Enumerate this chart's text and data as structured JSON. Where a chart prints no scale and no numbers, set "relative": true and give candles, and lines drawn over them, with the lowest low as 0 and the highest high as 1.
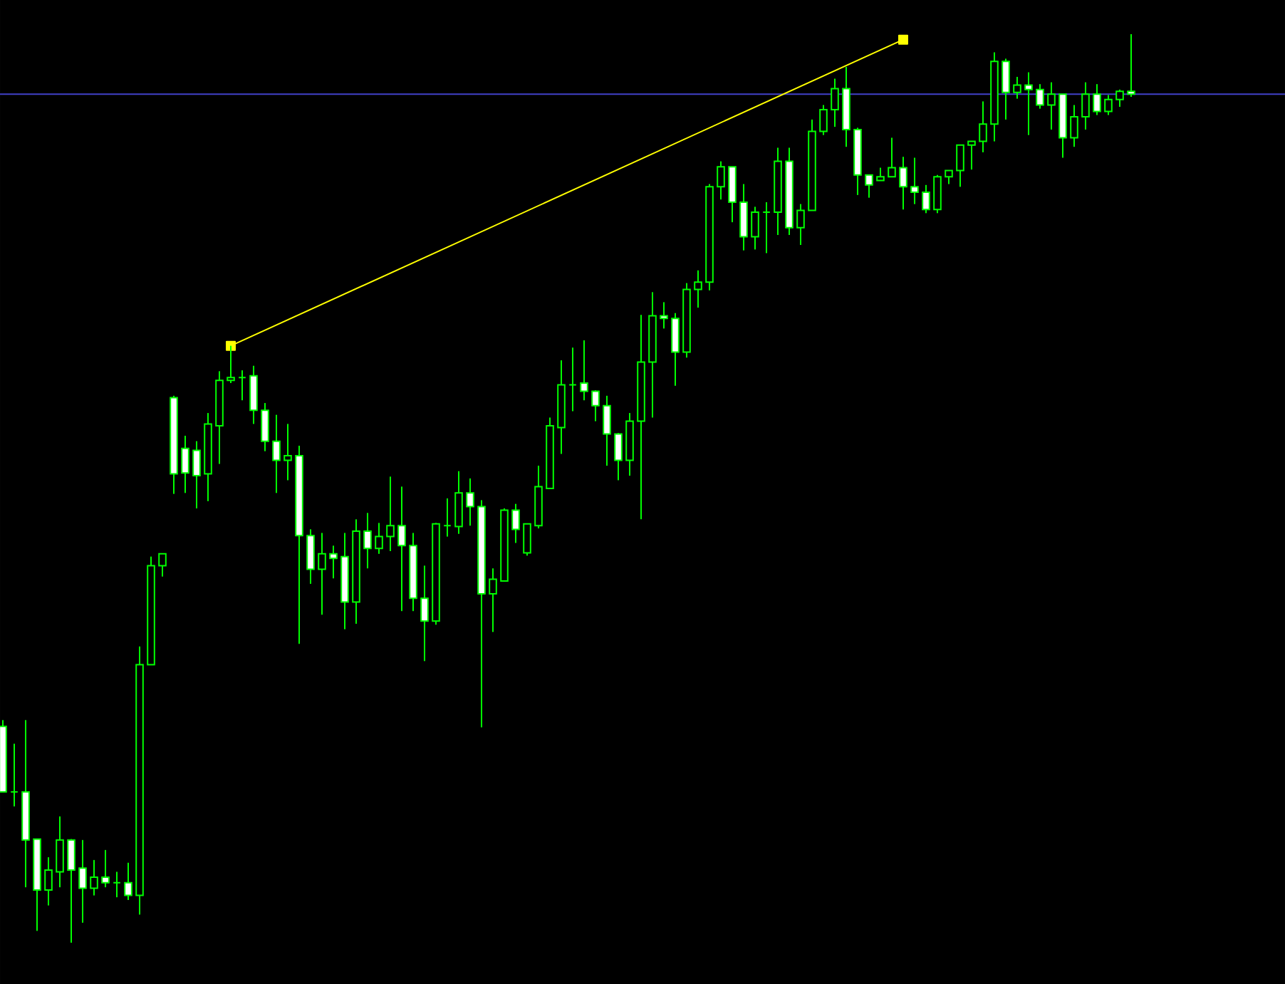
{
  "chart_data": {
    "type": "candlestick",
    "relative": true,
    "color": "#00ff00",
    "categories": [
      null,
      null,
      null,
      null,
      null,
      null,
      null,
      null,
      null,
      null,
      null,
      null,
      null,
      null,
      null,
      null,
      null,
      null,
      null,
      null,
      null,
      null,
      null,
      null,
      null,
      null,
      null,
      null,
      null,
      null,
      null,
      null,
      null,
      null,
      null,
      null,
      null,
      null,
      null,
      null,
      null,
      null,
      null,
      null,
      null,
      null,
      null,
      null,
      null,
      null,
      null,
      null,
      null,
      null,
      null,
      null,
      null,
      null,
      null,
      null,
      null,
      null,
      null,
      null,
      null,
      null,
      null,
      null,
      null,
      null,
      null,
      null,
      null,
      null,
      null,
      null,
      null,
      null,
      null,
      null,
      null,
      null,
      null,
      null,
      null,
      null,
      null,
      null,
      null,
      null,
      null,
      null,
      null,
      null,
      null,
      null,
      null,
      null,
      null,
      null
    ],
    "ohlc": [
      [
        0.238,
        0.245,
        0.166,
        0.166
      ],
      [
        0.166,
        0.219,
        0.15,
        0.166
      ],
      [
        0.166,
        0.245,
        0.061,
        0.113
      ],
      [
        0.114,
        0.114,
        0.013,
        0.058
      ],
      [
        0.058,
        0.094,
        0.041,
        0.08
      ],
      [
        0.078,
        0.139,
        0.061,
        0.113
      ],
      [
        0.113,
        0.114,
        0,
        0.08
      ],
      [
        0.082,
        0.113,
        0.022,
        0.06
      ],
      [
        0.06,
        0.091,
        0.052,
        0.072
      ],
      [
        0.072,
        0.102,
        0.061,
        0.066
      ],
      [
        0.066,
        0.078,
        0.05,
        0.066
      ],
      [
        0.066,
        0.088,
        0.047,
        0.052
      ],
      [
        0.052,
        0.326,
        0.031,
        0.306
      ],
      [
        0.306,
        0.425,
        0.306,
        0.415
      ],
      [
        0.415,
        0.428,
        0.403,
        0.428
      ],
      [
        0.6,
        0.602,
        0.494,
        0.516
      ],
      [
        0.544,
        0.558,
        0.495,
        0.517
      ],
      [
        0.542,
        0.552,
        0.478,
        0.514
      ],
      [
        0.516,
        0.583,
        0.486,
        0.571
      ],
      [
        0.569,
        0.629,
        0.527,
        0.619
      ],
      [
        0.619,
        0.657,
        0.616,
        0.622
      ],
      [
        0.622,
        0.63,
        0.597,
        0.622
      ],
      [
        0.624,
        0.635,
        0.571,
        0.586
      ],
      [
        0.586,
        0.594,
        0.541,
        0.552
      ],
      [
        0.552,
        0.581,
        0.495,
        0.531
      ],
      [
        0.531,
        0.571,
        0.509,
        0.536
      ],
      [
        0.536,
        0.547,
        0.329,
        0.448
      ],
      [
        0.448,
        0.455,
        0.395,
        0.411
      ],
      [
        0.411,
        0.451,
        0.361,
        0.428
      ],
      [
        0.428,
        0.437,
        0.401,
        0.423
      ],
      [
        0.425,
        0.451,
        0.345,
        0.375
      ],
      [
        0.375,
        0.466,
        0.351,
        0.453
      ],
      [
        0.453,
        0.473,
        0.412,
        0.434
      ],
      [
        0.434,
        0.462,
        0.428,
        0.447
      ],
      [
        0.447,
        0.513,
        0.431,
        0.459
      ],
      [
        0.459,
        0.502,
        0.365,
        0.437
      ],
      [
        0.437,
        0.451,
        0.365,
        0.379
      ],
      [
        0.379,
        0.415,
        0.31,
        0.354
      ],
      [
        0.354,
        0.462,
        0.35,
        0.461
      ],
      [
        0.459,
        0.489,
        0.447,
        0.459
      ],
      [
        0.458,
        0.519,
        0.45,
        0.495
      ],
      [
        0.495,
        0.511,
        0.459,
        0.48
      ],
      [
        0.48,
        0.487,
        0.237,
        0.384
      ],
      [
        0.384,
        0.412,
        0.342,
        0.4
      ],
      [
        0.398,
        0.478,
        0.398,
        0.476
      ],
      [
        0.476,
        0.483,
        0.44,
        0.455
      ],
      [
        0.429,
        0.461,
        0.426,
        0.461
      ],
      [
        0.459,
        0.525,
        0.456,
        0.502
      ],
      [
        0.5,
        0.578,
        0.5,
        0.569
      ],
      [
        0.567,
        0.641,
        0.538,
        0.614
      ],
      [
        0.614,
        0.655,
        0.585,
        0.614
      ],
      [
        0.616,
        0.663,
        0.597,
        0.607
      ],
      [
        0.607,
        0.608,
        0.574,
        0.591
      ],
      [
        0.591,
        0.602,
        0.525,
        0.56
      ],
      [
        0.56,
        0.561,
        0.509,
        0.531
      ],
      [
        0.531,
        0.583,
        0.514,
        0.574
      ],
      [
        0.574,
        0.691,
        0.466,
        0.639
      ],
      [
        0.639,
        0.716,
        0.578,
        0.69
      ],
      [
        0.69,
        0.705,
        0.676,
        0.687
      ],
      [
        0.687,
        0.693,
        0.613,
        0.65
      ],
      [
        0.65,
        0.726,
        0.644,
        0.719
      ],
      [
        0.719,
        0.74,
        0.699,
        0.727
      ],
      [
        0.727,
        0.835,
        0.718,
        0.832
      ],
      [
        0.832,
        0.86,
        0.818,
        0.854
      ],
      [
        0.854,
        0.854,
        0.793,
        0.815
      ],
      [
        0.815,
        0.835,
        0.762,
        0.777
      ],
      [
        0.777,
        0.81,
        0.763,
        0.804
      ],
      [
        0.804,
        0.815,
        0.759,
        0.804
      ],
      [
        0.804,
        0.875,
        0.779,
        0.86
      ],
      [
        0.86,
        0.875,
        0.779,
        0.787
      ],
      [
        0.787,
        0.813,
        0.768,
        0.806
      ],
      [
        0.806,
        0.906,
        0.806,
        0.893
      ],
      [
        0.893,
        0.922,
        0.889,
        0.917
      ],
      [
        0.917,
        0.951,
        0.898,
        0.94
      ],
      [
        0.94,
        0.964,
        0.876,
        0.895
      ],
      [
        0.895,
        0.897,
        0.823,
        0.845
      ],
      [
        0.845,
        0.845,
        0.82,
        0.834
      ],
      [
        0.839,
        0.853,
        0.839,
        0.843
      ],
      [
        0.843,
        0.886,
        0.843,
        0.853
      ],
      [
        0.853,
        0.865,
        0.807,
        0.832
      ],
      [
        0.832,
        0.864,
        0.813,
        0.826
      ],
      [
        0.826,
        0.834,
        0.803,
        0.807
      ],
      [
        0.807,
        0.845,
        0.803,
        0.843
      ],
      [
        0.843,
        0.85,
        0.835,
        0.85
      ],
      [
        0.85,
        0.878,
        0.832,
        0.878
      ],
      [
        0.878,
        0.882,
        0.851,
        0.882
      ],
      [
        0.882,
        0.926,
        0.87,
        0.901
      ],
      [
        0.901,
        0.98,
        0.882,
        0.97
      ],
      [
        0.97,
        0.973,
        0.906,
        0.936
      ],
      [
        0.936,
        0.953,
        0.929,
        0.944
      ],
      [
        0.944,
        0.958,
        0.889,
        0.939
      ],
      [
        0.939,
        0.945,
        0.918,
        0.922
      ],
      [
        0.922,
        0.947,
        0.895,
        0.934
      ],
      [
        0.934,
        0.934,
        0.864,
        0.886
      ],
      [
        0.886,
        0.922,
        0.876,
        0.909
      ],
      [
        0.909,
        0.947,
        0.895,
        0.934
      ],
      [
        0.934,
        0.945,
        0.911,
        0.915
      ],
      [
        0.915,
        0.933,
        0.911,
        0.928
      ],
      [
        0.928,
        0.939,
        0.92,
        0.937
      ],
      [
        0.937,
        1,
        0.931,
        0.934
      ]
    ],
    "series": [
      {
        "type": "line",
        "color": "#ffff00",
        "marker": "square",
        "line_style": "solid",
        "values": [
          null,
          null,
          null,
          null,
          null,
          null,
          null,
          null,
          null,
          null,
          null,
          null,
          null,
          null,
          null,
          null,
          null,
          null,
          null,
          null,
          0.657,
          null,
          null,
          null,
          null,
          null,
          null,
          null,
          null,
          null,
          null,
          null,
          null,
          null,
          null,
          null,
          null,
          null,
          null,
          null,
          null,
          null,
          null,
          null,
          null,
          null,
          null,
          null,
          null,
          null,
          null,
          null,
          null,
          null,
          null,
          null,
          null,
          null,
          null,
          null,
          null,
          null,
          null,
          null,
          null,
          null,
          null,
          null,
          null,
          null,
          null,
          null,
          null,
          null,
          null,
          null,
          null,
          null,
          null,
          0.994,
          null,
          null,
          null,
          null,
          null,
          null,
          null,
          null,
          null,
          null,
          null,
          null,
          null,
          null,
          null,
          null,
          null,
          null,
          null,
          null
        ]
      }
    ],
    "ref_lines": [
      {
        "axis": "y",
        "value": 0.934,
        "color": "#4040c8"
      }
    ]
  }
}
